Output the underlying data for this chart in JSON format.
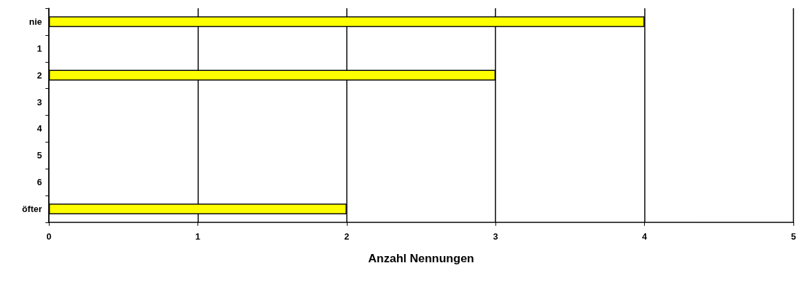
{
  "chart_data": {
    "type": "bar",
    "orientation": "horizontal",
    "xlabel": "Anzahl Nennungen",
    "categories": [
      "nie",
      "1",
      "2",
      "3",
      "4",
      "5",
      "6",
      "öfter"
    ],
    "values": [
      4,
      0,
      3,
      0,
      0,
      0,
      0,
      2
    ],
    "color": "#ffff00",
    "xlim": [
      0,
      5
    ],
    "xticks": [
      0,
      1,
      2,
      3,
      4,
      5
    ],
    "grid": "x"
  }
}
